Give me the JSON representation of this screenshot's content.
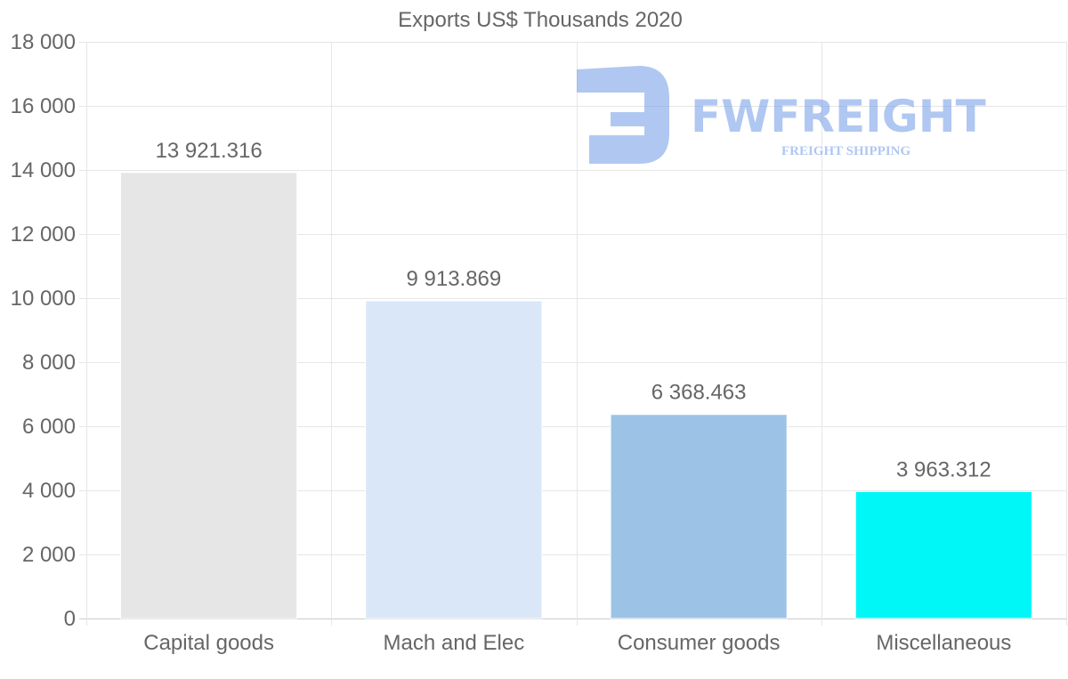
{
  "chart_data": {
    "type": "bar",
    "title": "Exports US$ Thousands 2020",
    "categories": [
      "Capital goods",
      "Mach and Elec",
      "Consumer goods",
      "Miscellaneous"
    ],
    "values": [
      13921.316,
      9913.869,
      6368.463,
      3963.312
    ],
    "data_labels": [
      "13 921.316",
      "9 913.869",
      "6 368.463",
      "3 963.312"
    ],
    "colors": [
      "#e6e6e6",
      "#d9e7f9",
      "#9cc3e6",
      "#00f7f7"
    ],
    "ylim": [
      0,
      18000
    ],
    "yticks": [
      0,
      2000,
      4000,
      6000,
      8000,
      10000,
      12000,
      14000,
      16000,
      18000
    ],
    "ytick_labels": [
      "0",
      "2 000",
      "4 000",
      "6 000",
      "8 000",
      "10 000",
      "12 000",
      "14 000",
      "16 000",
      "18 000"
    ],
    "xlabel": "",
    "ylabel": "",
    "grid": true,
    "legend": "none"
  },
  "watermark": {
    "brand": "FWFREIGHT",
    "tagline": "FREIGHT SHIPPING",
    "color": "#6f9be6"
  }
}
